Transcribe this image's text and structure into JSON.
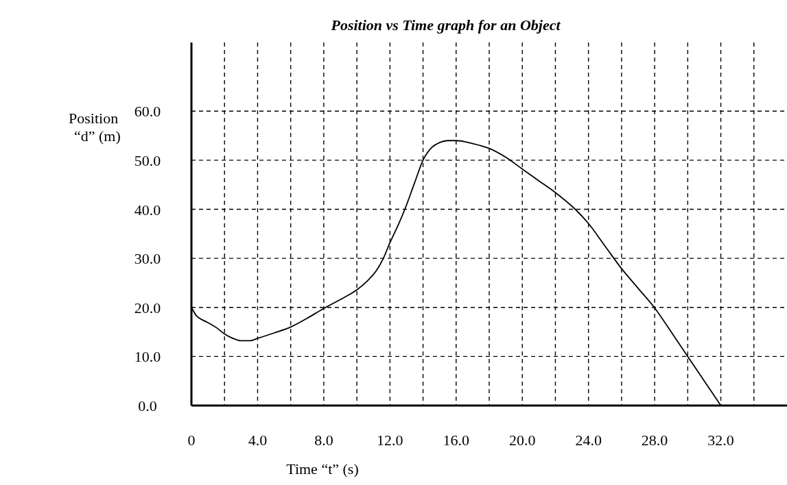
{
  "chart_data": {
    "type": "line",
    "title": "Position vs Time graph for an Object",
    "xlabel": "Time “t” (s)",
    "ylabel": "Position\n“d” (m)",
    "x": [
      0,
      0.3,
      0.7,
      1,
      1.5,
      2,
      2.5,
      3,
      3.5,
      4,
      5,
      6,
      7,
      8,
      9,
      10,
      10.6,
      11.2,
      11.6,
      12,
      12.5,
      12.9,
      13.5,
      14,
      14.5,
      15,
      15.5,
      16,
      17,
      18,
      19,
      20,
      21,
      22,
      23.2,
      24,
      25,
      26,
      27,
      28,
      29,
      30,
      31,
      32
    ],
    "series": [
      {
        "color": "#000000",
        "values": [
          20,
          18.3,
          17.4,
          16.9,
          15.9,
          14.6,
          13.7,
          13.2,
          13.2,
          13.7,
          14.8,
          16,
          17.8,
          19.8,
          21.6,
          23.6,
          25.3,
          27.6,
          30,
          33.2,
          36.8,
          40,
          45.5,
          50,
          52.5,
          53.6,
          54,
          54,
          53.4,
          52.4,
          50.6,
          48.2,
          45.8,
          43.4,
          40,
          37.1,
          32.5,
          27.9,
          23.9,
          19.9,
          15,
          10,
          5,
          0
        ]
      }
    ],
    "xlim": [
      0,
      36
    ],
    "ylim": [
      0,
      74
    ],
    "xticks": [
      {
        "value": 0,
        "label": "0"
      },
      {
        "value": 2,
        "label": null
      },
      {
        "value": 4,
        "label": "4.0"
      },
      {
        "value": 6,
        "label": null
      },
      {
        "value": 8,
        "label": "8.0"
      },
      {
        "value": 10,
        "label": null
      },
      {
        "value": 12,
        "label": "12.0"
      },
      {
        "value": 14,
        "label": null
      },
      {
        "value": 16,
        "label": "16.0"
      },
      {
        "value": 18,
        "label": null
      },
      {
        "value": 20,
        "label": "20.0"
      },
      {
        "value": 22,
        "label": null
      },
      {
        "value": 24,
        "label": "24.0"
      },
      {
        "value": 26,
        "label": null
      },
      {
        "value": 28,
        "label": "28.0"
      },
      {
        "value": 30,
        "label": null
      },
      {
        "value": 32,
        "label": "32.0"
      },
      {
        "value": 34,
        "label": null
      }
    ],
    "yticks": [
      {
        "value": 0,
        "label": "0.0"
      },
      {
        "value": 10,
        "label": "10.0"
      },
      {
        "value": 20,
        "label": "20.0"
      },
      {
        "value": 30,
        "label": "30.0"
      },
      {
        "value": 40,
        "label": "40.0"
      },
      {
        "value": 50,
        "label": "50.0"
      },
      {
        "value": 60,
        "label": "60.0"
      }
    ],
    "grid": true,
    "marker": "none",
    "line_style": "solid"
  }
}
